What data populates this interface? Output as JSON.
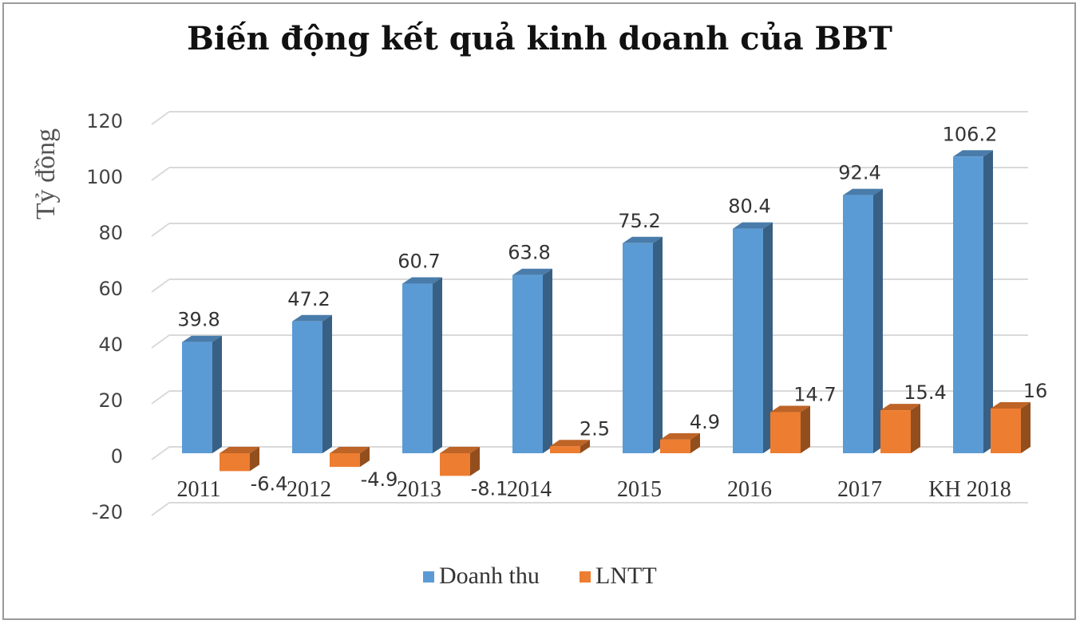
{
  "chart_data": {
    "type": "bar",
    "title": "Biến động kết quả kinh doanh của BBT",
    "ylabel": "Tỷ đồng",
    "xlabel": "",
    "ylim": [
      -20,
      120
    ],
    "yticks": [
      -20,
      0,
      20,
      40,
      60,
      80,
      100,
      120
    ],
    "grid": true,
    "legend": "bottom",
    "categories": [
      "2011",
      "2012",
      "2013",
      "2014",
      "2015",
      "2016",
      "2017",
      "KH 2018"
    ],
    "series": [
      {
        "name": "Doanh thu",
        "color": "#5b9bd5",
        "values": [
          39.8,
          47.2,
          60.7,
          63.8,
          75.2,
          80.4,
          92.4,
          106.2
        ]
      },
      {
        "name": "LNTT",
        "color": "#ed7d31",
        "values": [
          -6.4,
          -4.9,
          -8.1,
          2.5,
          4.9,
          14.7,
          15.4,
          16
        ]
      }
    ]
  }
}
